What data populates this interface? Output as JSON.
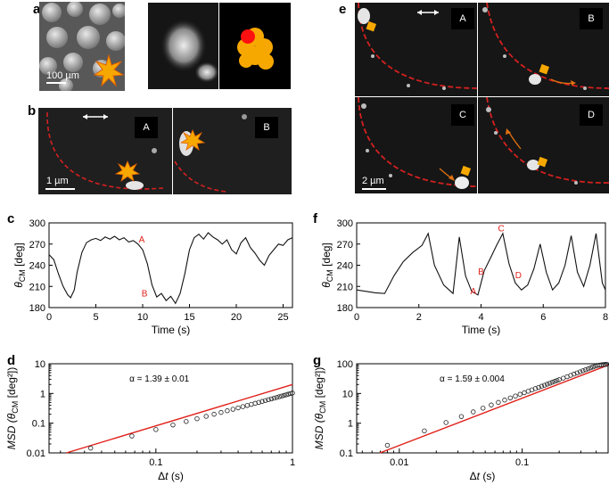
{
  "panel_labels": {
    "a": "a",
    "b": "b",
    "c": "c",
    "d": "d",
    "e": "e",
    "f": "f",
    "g": "g"
  },
  "panel_a": {
    "scale_text": "100 µm"
  },
  "panel_b": {
    "scale_text": "1 µm",
    "frames": [
      "A",
      "B"
    ]
  },
  "panel_e": {
    "scale_text": "2 µm",
    "frames": [
      "A",
      "B",
      "C",
      "D"
    ]
  },
  "colors": {
    "guide_dashed": "#d42020",
    "fit_line": "#e0201a",
    "marker": "#f7a800"
  },
  "chart_data": [
    {
      "panel": "c",
      "type": "line",
      "xlabel": "Time (s)",
      "ylabel_main": "θ",
      "ylabel_sub": "CM",
      "ylabel_unit": " [deg]",
      "xlim": [
        0,
        26
      ],
      "ylim": [
        180,
        300
      ],
      "xticks": [
        0,
        5,
        10,
        15,
        20,
        25
      ],
      "yticks": [
        180,
        210,
        240,
        270,
        300
      ],
      "annotations": [
        {
          "text": "A",
          "x": 9.9,
          "y": 272
        },
        {
          "text": "B",
          "x": 10.2,
          "y": 196
        }
      ],
      "x": [
        0,
        0.5,
        1,
        1.5,
        2,
        2.3,
        2.7,
        3,
        3.5,
        4,
        4.5,
        5,
        5.5,
        6,
        6.5,
        7,
        7.5,
        8,
        8.5,
        9,
        9.5,
        10,
        10.5,
        11,
        11.5,
        12,
        12.5,
        13,
        13.5,
        14,
        14.5,
        15,
        15.5,
        16,
        16.5,
        17,
        17.5,
        18,
        18.5,
        19,
        19.5,
        20,
        20.5,
        21,
        21.5,
        22,
        22.5,
        23,
        23.5,
        24,
        24.5,
        25,
        25.5,
        26
      ],
      "y": [
        255,
        248,
        228,
        210,
        198,
        194,
        205,
        230,
        258,
        272,
        276,
        278,
        275,
        280,
        277,
        281,
        276,
        279,
        273,
        275,
        270,
        262,
        242,
        212,
        195,
        200,
        190,
        196,
        186,
        200,
        228,
        262,
        279,
        284,
        277,
        286,
        280,
        276,
        270,
        276,
        262,
        256,
        272,
        279,
        265,
        257,
        247,
        240,
        254,
        262,
        270,
        268,
        276,
        279
      ]
    },
    {
      "panel": "f",
      "type": "line",
      "xlabel": "Time (s)",
      "ylabel_main": "θ",
      "ylabel_sub": "CM",
      "ylabel_unit": " [deg]",
      "xlim": [
        0,
        8
      ],
      "ylim": [
        180,
        300
      ],
      "xticks": [
        0,
        2,
        4,
        6,
        8
      ],
      "yticks": [
        180,
        210,
        240,
        270,
        300
      ],
      "annotations": [
        {
          "text": "A",
          "x": 3.75,
          "y": 199
        },
        {
          "text": "B",
          "x": 4.0,
          "y": 227
        },
        {
          "text": "C",
          "x": 4.65,
          "y": 288
        },
        {
          "text": "D",
          "x": 5.2,
          "y": 222
        }
      ],
      "x": [
        0,
        0.3,
        0.6,
        0.9,
        1.2,
        1.5,
        1.8,
        2.1,
        2.3,
        2.5,
        2.8,
        3.1,
        3.3,
        3.5,
        3.7,
        3.9,
        4.1,
        4.3,
        4.5,
        4.7,
        4.9,
        5.1,
        5.3,
        5.5,
        5.7,
        5.9,
        6.1,
        6.3,
        6.5,
        6.7,
        6.9,
        7.1,
        7.3,
        7.5,
        7.7,
        7.9,
        8.0
      ],
      "y": [
        205,
        203,
        201,
        200,
        225,
        245,
        258,
        268,
        285,
        240,
        212,
        200,
        280,
        225,
        203,
        198,
        232,
        250,
        268,
        285,
        242,
        215,
        205,
        212,
        235,
        270,
        230,
        205,
        215,
        240,
        282,
        230,
        210,
        240,
        285,
        215,
        205
      ]
    },
    {
      "panel": "d",
      "type": "scatter",
      "xscale": "log",
      "yscale": "log",
      "xlabel_main": "Δ",
      "xlabel_italic": "t",
      "xlabel_unit": " (s)",
      "ylabel_main": "MSD (θ",
      "ylabel_sub": "CM",
      "ylabel_unit": " [deg²])",
      "xlim": [
        0.0165,
        1
      ],
      "ylim": [
        0.01,
        10
      ],
      "xticks": [
        0.1,
        1
      ],
      "xticklabels": [
        "0.1",
        "1"
      ],
      "yticks": [
        0.01,
        0.1,
        1,
        10
      ],
      "yticklabels": [
        "0.01",
        "0.1",
        "1",
        "10"
      ],
      "fit_label": "α = 1.39 ± 0.01",
      "fit": {
        "alpha": 1.39,
        "coef": 2.0
      },
      "x": [
        0.0333,
        0.0667,
        0.1,
        0.1333,
        0.1667,
        0.2,
        0.2333,
        0.2667,
        0.3,
        0.3333,
        0.3667,
        0.4,
        0.4333,
        0.4667,
        0.5,
        0.5333,
        0.5667,
        0.6,
        0.6333,
        0.6667,
        0.7,
        0.7333,
        0.7667,
        0.8,
        0.8333,
        0.8667,
        0.9,
        0.9333,
        0.9667,
        1.0
      ],
      "y": [
        0.0145,
        0.037,
        0.061,
        0.087,
        0.114,
        0.141,
        0.17,
        0.2,
        0.23,
        0.262,
        0.294,
        0.327,
        0.361,
        0.395,
        0.43,
        0.466,
        0.502,
        0.54,
        0.578,
        0.617,
        0.656,
        0.696,
        0.736,
        0.777,
        0.819,
        0.861,
        0.904,
        0.948,
        0.993,
        1.038
      ]
    },
    {
      "panel": "g",
      "type": "scatter",
      "xscale": "log",
      "yscale": "log",
      "xlabel_main": "Δ",
      "xlabel_italic": "t",
      "xlabel_unit": " (s)",
      "ylabel_main": "MSD (θ",
      "ylabel_sub": "CM",
      "ylabel_unit": " [deg²])",
      "xlim": [
        0.0045,
        0.5
      ],
      "ylim": [
        0.1,
        100
      ],
      "xticks": [
        0.01,
        0.1
      ],
      "xticklabels": [
        "0.01",
        "0.1"
      ],
      "yticks": [
        0.1,
        1,
        10,
        100
      ],
      "yticklabels": [
        "0.1",
        "1",
        "10",
        "100"
      ],
      "fit_label": "α = 1.59 ± 0.004",
      "fit": {
        "alpha": 1.59,
        "coef": 270
      },
      "x": [
        0.008,
        0.016,
        0.024,
        0.032,
        0.04,
        0.048,
        0.056,
        0.064,
        0.072,
        0.08,
        0.088,
        0.096,
        0.104,
        0.112,
        0.12,
        0.128,
        0.136,
        0.144,
        0.152,
        0.16,
        0.168,
        0.176,
        0.184,
        0.192,
        0.2,
        0.216,
        0.232,
        0.248,
        0.264,
        0.28,
        0.296,
        0.312,
        0.328,
        0.344,
        0.36,
        0.376,
        0.392,
        0.408,
        0.424,
        0.44,
        0.456,
        0.472,
        0.488
      ],
      "y": [
        0.18,
        0.55,
        1.05,
        1.68,
        2.4,
        3.2,
        4.1,
        5.0,
        6.0,
        7.1,
        8.2,
        9.4,
        10.6,
        11.9,
        13.2,
        14.6,
        16.0,
        17.5,
        19.0,
        20.6,
        22.2,
        23.9,
        25.6,
        27.3,
        29.1,
        32.8,
        36.6,
        40.7,
        44.9,
        49.2,
        53.6,
        58.2,
        62.9,
        67.7,
        72.6,
        77.6,
        82.8,
        88.0,
        90,
        92,
        94,
        95,
        96
      ]
    }
  ]
}
